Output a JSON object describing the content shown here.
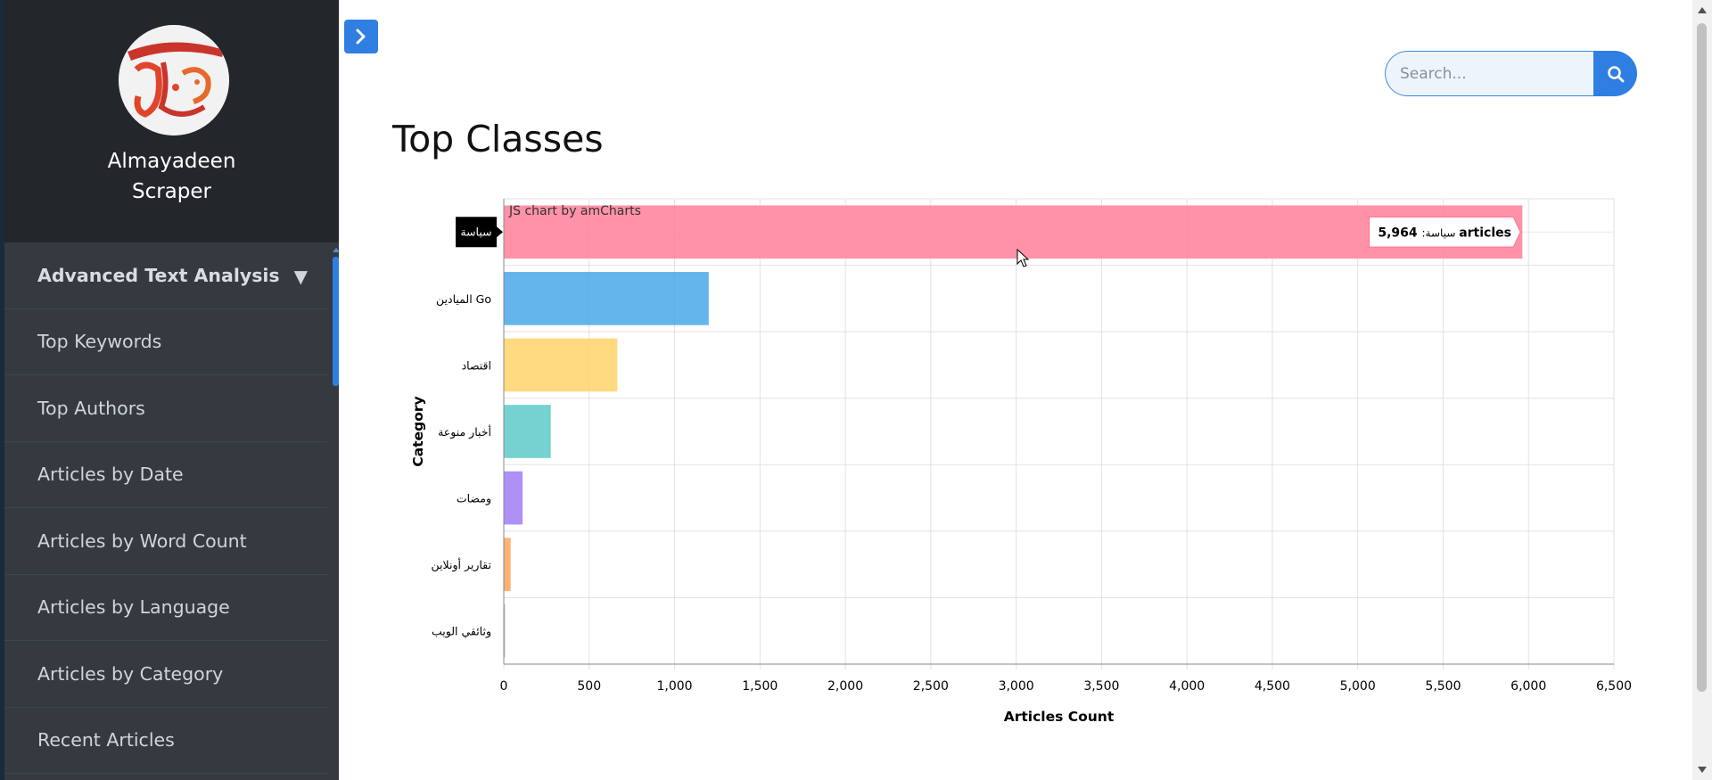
{
  "brand": {
    "line1": "Almayadeen",
    "line2": "Scraper",
    "logo_icon": "almayadeen-logo-icon"
  },
  "sidebar": {
    "items": [
      {
        "label": "Advanced Text Analysis",
        "caret": "▼"
      },
      {
        "label": "Top Keywords"
      },
      {
        "label": "Top Authors"
      },
      {
        "label": "Articles by Date"
      },
      {
        "label": "Articles by Word Count"
      },
      {
        "label": "Articles by Language"
      },
      {
        "label": "Articles by Category"
      },
      {
        "label": "Recent Articles"
      }
    ]
  },
  "toggle": {
    "icon": "chevron-right-icon"
  },
  "search": {
    "placeholder": "Search...",
    "icon": "search-icon"
  },
  "page": {
    "title": "Top Classes"
  },
  "colors": {
    "accent": "#2f7fe2",
    "sidebar": "#343a40",
    "sidebar_header": "#23272b"
  },
  "chart_data": {
    "type": "bar",
    "orientation": "horizontal",
    "categories": [
      "سياسة",
      "الميادين Go",
      "اقتصاد",
      "أخبار منوعة",
      "ومضات",
      "تقارير أونلاين",
      "وثائقي الويب"
    ],
    "values": [
      5964,
      1200,
      665,
      275,
      110,
      40,
      3
    ],
    "colors": [
      "#ff7f9a",
      "#4aa8ea",
      "#ffd36a",
      "#5ecac8",
      "#a07cf6",
      "#ffa55a",
      "#bbbbbb"
    ],
    "xlabel": "Articles Count",
    "ylabel": "Category",
    "xlim": [
      0,
      6500
    ],
    "xticks": [
      "0",
      "500",
      "1,000",
      "1,500",
      "2,000",
      "2,500",
      "3,000",
      "3,500",
      "4,000",
      "4,500",
      "5,000",
      "5,500",
      "6,000",
      "6,500"
    ],
    "grid": true,
    "credit": "JS chart by amCharts",
    "tooltip": {
      "category": "سياسة",
      "value": "5,964",
      "suffix": "articles"
    },
    "highlighted_category": "سياسة"
  }
}
